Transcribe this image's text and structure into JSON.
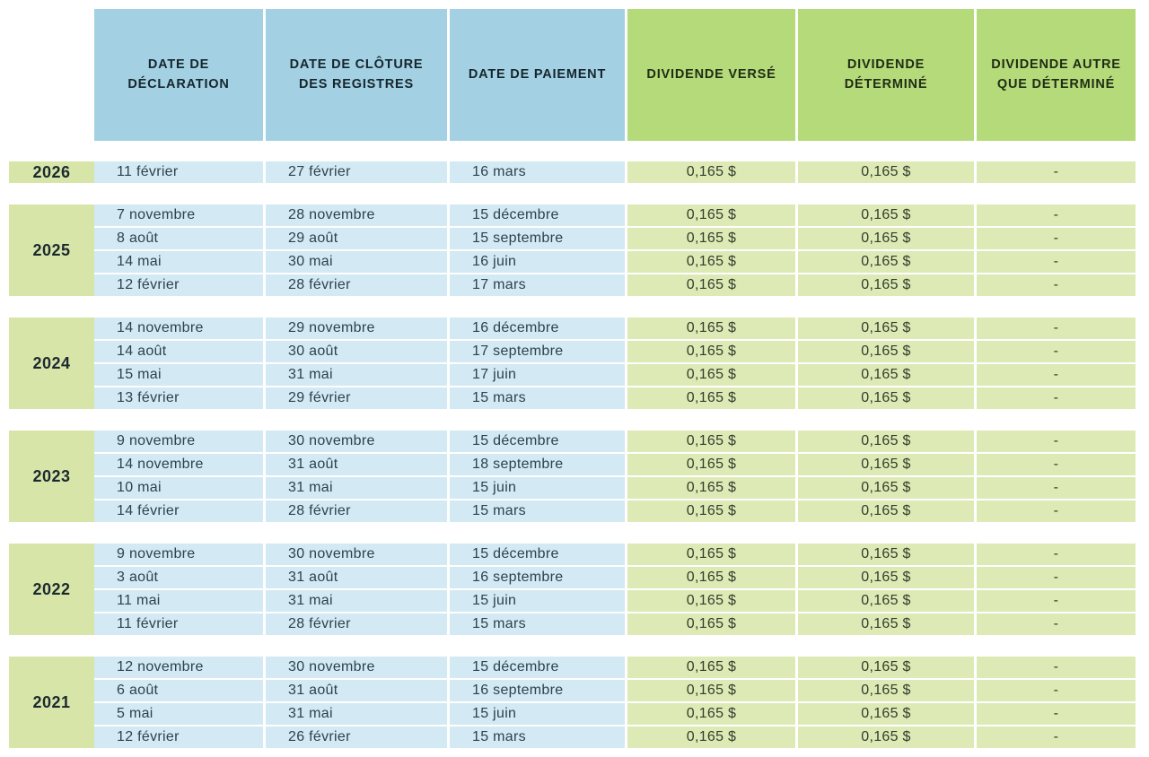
{
  "chart_data": {
    "type": "table",
    "columns": [
      "DATE DE DÉCLARATION",
      "DATE DE CLÔTURE DES REGISTRES",
      "DATE DE PAIEMENT",
      "DIVIDENDE VERSÉ",
      "DIVIDENDE DÉTERMINÉ",
      "DIVIDENDE AUTRE QUE DÉTERMINÉ"
    ],
    "row_group_label": "year",
    "groups": [
      {
        "year": "2026",
        "rows": [
          [
            "11 février",
            "27 février",
            "16 mars",
            "0,165 $",
            "0,165 $",
            "-"
          ]
        ]
      },
      {
        "year": "2025",
        "rows": [
          [
            "7 novembre",
            "28 novembre",
            "15 décembre",
            "0,165 $",
            "0,165 $",
            "-"
          ],
          [
            "8 août",
            "29 août",
            "15 septembre",
            "0,165 $",
            "0,165 $",
            "-"
          ],
          [
            "14 mai",
            "30 mai",
            "16 juin",
            "0,165 $",
            "0,165 $",
            "-"
          ],
          [
            "12 février",
            "28 février",
            "17 mars",
            "0,165 $",
            "0,165 $",
            "-"
          ]
        ]
      },
      {
        "year": "2024",
        "rows": [
          [
            "14 novembre",
            "29 novembre",
            "16 décembre",
            "0,165 $",
            "0,165 $",
            "-"
          ],
          [
            "14 août",
            "30 août",
            "17 septembre",
            "0,165 $",
            "0,165 $",
            "-"
          ],
          [
            "15 mai",
            "31 mai",
            "17 juin",
            "0,165 $",
            "0,165 $",
            "-"
          ],
          [
            "13 février",
            "29 février",
            "15 mars",
            "0,165 $",
            "0,165 $",
            "-"
          ]
        ]
      },
      {
        "year": "2023",
        "rows": [
          [
            "9 novembre",
            "30 novembre",
            "15 décembre",
            "0,165 $",
            "0,165 $",
            "-"
          ],
          [
            "14 novembre",
            "31 août",
            "18 septembre",
            "0,165 $",
            "0,165 $",
            "-"
          ],
          [
            "10 mai",
            "31 mai",
            "15 juin",
            "0,165 $",
            "0,165 $",
            "-"
          ],
          [
            "14 février",
            "28 février",
            "15 mars",
            "0,165 $",
            "0,165 $",
            "-"
          ]
        ]
      },
      {
        "year": "2022",
        "rows": [
          [
            "9 novembre",
            "30 novembre",
            "15 décembre",
            "0,165 $",
            "0,165 $",
            "-"
          ],
          [
            "3 août",
            "31 août",
            "16 septembre",
            "0,165 $",
            "0,165 $",
            "-"
          ],
          [
            "11 mai",
            "31 mai",
            "15 juin",
            "0,165 $",
            "0,165 $",
            "-"
          ],
          [
            "11 février",
            "28 février",
            "15 mars",
            "0,165 $",
            "0,165 $",
            "-"
          ]
        ]
      },
      {
        "year": "2021",
        "rows": [
          [
            "12 novembre",
            "30 novembre",
            "15 décembre",
            "0,165 $",
            "0,165 $",
            "-"
          ],
          [
            "6 août",
            "31 août",
            "16 septembre",
            "0,165 $",
            "0,165 $",
            "-"
          ],
          [
            "5 mai",
            "31 mai",
            "15 juin",
            "0,165 $",
            "0,165 $",
            "-"
          ],
          [
            "12 février",
            "26 février",
            "15 mars",
            "0,165 $",
            "0,165 $",
            "-"
          ]
        ]
      }
    ]
  },
  "colors": {
    "header_blue": "#a3d0e2",
    "header_green": "#b5da7a",
    "row_blue": "#d3e9f3",
    "row_green": "#ddeab6",
    "year_green": "#d8e5a8"
  }
}
